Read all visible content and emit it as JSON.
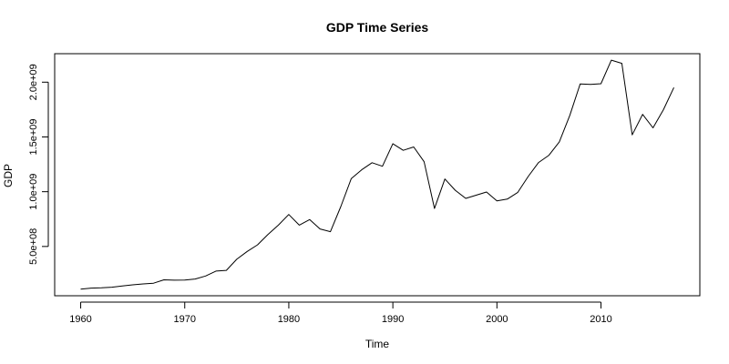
{
  "chart_data": {
    "type": "line",
    "title": "GDP Time Series",
    "xlabel": "Time",
    "ylabel": "GDP",
    "grid": false,
    "legend": "none",
    "xlim": [
      1957.5,
      2019.5
    ],
    "ylim": [
      50000000,
      2260000000
    ],
    "x_ticks": [
      1960,
      1970,
      1980,
      1990,
      2000,
      2010
    ],
    "x_tick_labels": [
      "1960",
      "1970",
      "1980",
      "1990",
      "2000",
      "2010"
    ],
    "y_ticks": [
      500000000,
      1000000000,
      1500000000,
      2000000000
    ],
    "y_tick_labels": [
      "5.0e+08",
      "1.0e+09",
      "1.5e+09",
      "2.0e+09"
    ],
    "series": [
      {
        "line_color": "#000000",
        "x": [
          1960,
          1961,
          1962,
          1963,
          1964,
          1965,
          1966,
          1967,
          1968,
          1969,
          1970,
          1971,
          1972,
          1973,
          1974,
          1975,
          1976,
          1977,
          1978,
          1979,
          1980,
          1981,
          1982,
          1983,
          1984,
          1985,
          1986,
          1987,
          1988,
          1989,
          1990,
          1991,
          1992,
          1993,
          1994,
          1995,
          1996,
          1997,
          1998,
          1999,
          2000,
          2001,
          2002,
          2003,
          2004,
          2005,
          2006,
          2007,
          2008,
          2009,
          2010,
          2011,
          2012,
          2013,
          2014,
          2015,
          2016,
          2017
        ],
        "values": [
          110000000,
          120000000,
          122000000,
          128000000,
          140000000,
          150000000,
          158000000,
          165000000,
          195000000,
          192000000,
          193000000,
          203000000,
          230000000,
          275000000,
          282000000,
          383000000,
          455000000,
          515000000,
          610000000,
          695000000,
          792000000,
          695000000,
          745000000,
          660000000,
          635000000,
          864000000,
          1120000000,
          1200000000,
          1265000000,
          1232000000,
          1438000000,
          1378000000,
          1408000000,
          1274000000,
          847000000,
          1116000000,
          1013000000,
          939000000,
          968000000,
          997000000,
          916000000,
          932000000,
          994000000,
          1138000000,
          1266000000,
          1333000000,
          1455000000,
          1697000000,
          1984000000,
          1979000000,
          1986000000,
          2201000000,
          2172000000,
          1519000000,
          1706000000,
          1583000000,
          1748000000,
          1951000000
        ]
      }
    ]
  }
}
